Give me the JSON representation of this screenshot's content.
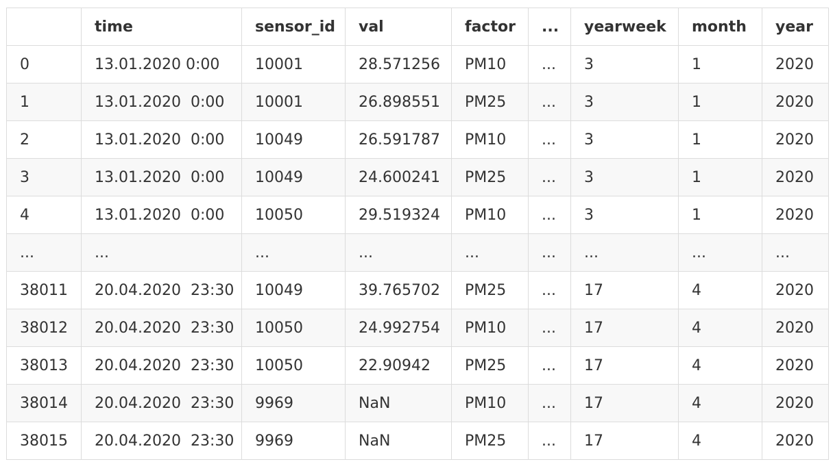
{
  "table": {
    "columns": [
      "",
      "time",
      "sensor_id",
      "val",
      "factor",
      "...",
      "yearweek",
      "month",
      "year"
    ],
    "rows": [
      [
        "0",
        "13.01.2020 0:00",
        "10001",
        "28.571256",
        "PM10",
        "...",
        "3",
        "1",
        "2020"
      ],
      [
        "1",
        "13.01.2020  0:00",
        "10001",
        "26.898551",
        "PM25",
        "...",
        "3",
        "1",
        "2020"
      ],
      [
        "2",
        "13.01.2020  0:00",
        "10049",
        "26.591787",
        "PM10",
        "...",
        "3",
        "1",
        "2020"
      ],
      [
        "3",
        "13.01.2020  0:00",
        "10049",
        "24.600241",
        "PM25",
        "...",
        "3",
        "1",
        "2020"
      ],
      [
        "4",
        "13.01.2020  0:00",
        "10050",
        "29.519324",
        "PM10",
        "...",
        "3",
        "1",
        "2020"
      ],
      [
        "...",
        "...",
        "...",
        "...",
        "...",
        "...",
        "...",
        "...",
        "..."
      ],
      [
        "38011",
        "20.04.2020  23:30",
        "10049",
        "39.765702",
        "PM25",
        "...",
        "17",
        "4",
        "2020"
      ],
      [
        "38012",
        "20.04.2020  23:30",
        "10050",
        "24.992754",
        "PM10",
        "...",
        "17",
        "4",
        "2020"
      ],
      [
        "38013",
        "20.04.2020  23:30",
        "10050",
        "22.90942",
        "PM25",
        "...",
        "17",
        "4",
        "2020"
      ],
      [
        "38014",
        "20.04.2020  23:30",
        "9969",
        "NaN",
        "PM10",
        "...",
        "17",
        "4",
        "2020"
      ],
      [
        "38015",
        "20.04.2020  23:30",
        "9969",
        "NaN",
        "PM25",
        "...",
        "17",
        "4",
        "2020"
      ]
    ]
  }
}
